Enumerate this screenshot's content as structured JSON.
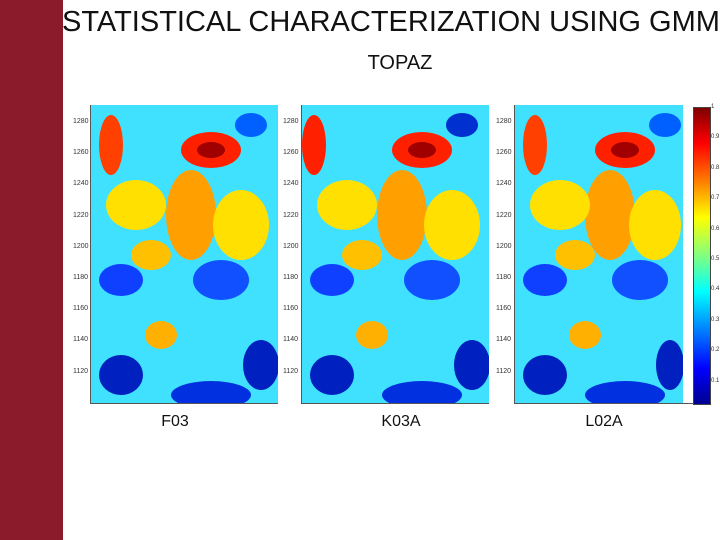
{
  "slide": {
    "title": "STATISTICAL CHARACTERIZATION USING GMM",
    "subtitle": "TOPAZ"
  },
  "panels": [
    {
      "label": "F03"
    },
    {
      "label": "K03A"
    },
    {
      "label": "L02A"
    }
  ],
  "y_ticks": [
    "1280",
    "1260",
    "1240",
    "1220",
    "1200",
    "1180",
    "1160",
    "1140",
    "1120"
  ],
  "colorbar": {
    "ticks": [
      "1",
      "0.9",
      "0.8",
      "0.7",
      "0.6",
      "0.5",
      "0.4",
      "0.3",
      "0.2",
      "0.1"
    ]
  }
}
